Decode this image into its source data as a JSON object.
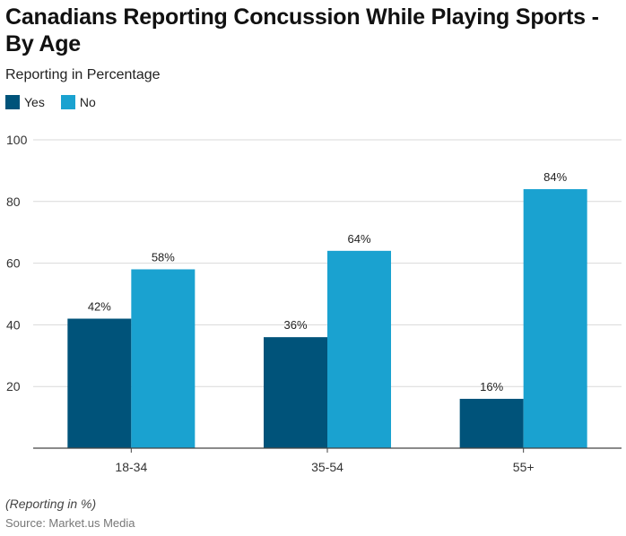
{
  "title": "Canadians Reporting Concussion While Playing Sports - By Age",
  "subtitle": "Reporting in Percentage",
  "note": "(Reporting in %)",
  "source": "Source: Market.us Media",
  "colors": {
    "yes": "#00537a",
    "no": "#1aa2d0",
    "grid": "#d9d9d9",
    "axis": "#444444"
  },
  "chart_data": {
    "type": "bar",
    "categories": [
      "18-34",
      "35-54",
      "55+"
    ],
    "series": [
      {
        "name": "Yes",
        "values": [
          42,
          36,
          16
        ],
        "labels": [
          "42%",
          "36%",
          "16%"
        ]
      },
      {
        "name": "No",
        "values": [
          58,
          64,
          84
        ],
        "labels": [
          "58%",
          "64%",
          "84%"
        ]
      }
    ],
    "yticks": [
      20,
      40,
      60,
      80,
      100
    ],
    "ylim": [
      0,
      100
    ],
    "grid": true,
    "legend": "top-left",
    "xlabel": "",
    "ylabel": ""
  }
}
